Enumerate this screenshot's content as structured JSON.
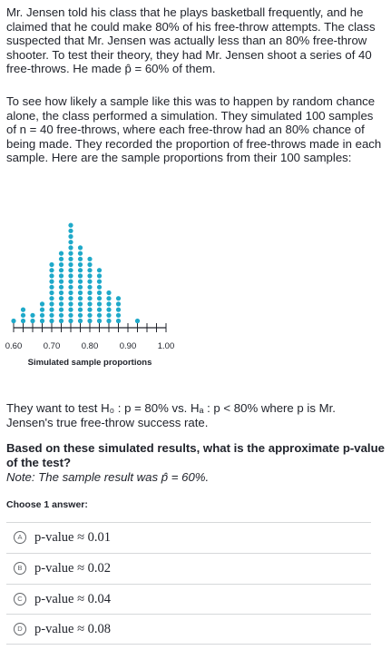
{
  "intro": {
    "text": "Mr. Jensen told his class that he plays basketball frequently, and he claimed that he could make 80% of his free-throw attempts. The class suspected that Mr. Jensen was actually less than an 80% free-throw shooter. To test their theory, they had Mr. Jensen shoot a series of 40 free-throws. He made p̂ = 60% of them."
  },
  "simulation": {
    "text": "To see how likely a sample like this was to happen by random chance alone, the class performed a simulation. They simulated 100 samples of n = 40 free-throws, where each free-throw had an 80% chance of being made. They recorded the proportion of free-throws made in each sample. Here are the sample proportions from their 100 samples:"
  },
  "chart_data": {
    "type": "scatter",
    "subtype": "dot plot",
    "xlabel": "Simulated sample proportions",
    "tick_labels": [
      "0.60",
      "0.70",
      "0.80",
      "0.90",
      "1.00"
    ],
    "xlim": [
      0.6,
      1.0
    ],
    "tick_step": 0.025,
    "dot_color": "#1fa9c9",
    "bins": [
      {
        "x": 0.6,
        "count": 1
      },
      {
        "x": 0.625,
        "count": 3
      },
      {
        "x": 0.65,
        "count": 2
      },
      {
        "x": 0.675,
        "count": 4
      },
      {
        "x": 0.7,
        "count": 11
      },
      {
        "x": 0.725,
        "count": 13
      },
      {
        "x": 0.75,
        "count": 18
      },
      {
        "x": 0.775,
        "count": 14
      },
      {
        "x": 0.8,
        "count": 12
      },
      {
        "x": 0.825,
        "count": 10
      },
      {
        "x": 0.85,
        "count": 6
      },
      {
        "x": 0.875,
        "count": 5
      },
      {
        "x": 0.925,
        "count": 1
      }
    ]
  },
  "hypothesis": {
    "text": "They want to test H₀ : p = 80% vs. Hₐ : p < 80% where p is Mr. Jensen's true free-throw success rate."
  },
  "question": {
    "text": "Based on these simulated results, what is the approximate p-value of the test?",
    "note": "Note: The sample result was p̂ = 60%."
  },
  "choose_label": "Choose 1 answer:",
  "choices": [
    {
      "letter": "A",
      "text": "p-value ≈ 0.01"
    },
    {
      "letter": "B",
      "text": "p-value ≈ 0.02"
    },
    {
      "letter": "C",
      "text": "p-value ≈ 0.04"
    },
    {
      "letter": "D",
      "text": "p-value ≈ 0.08"
    }
  ]
}
